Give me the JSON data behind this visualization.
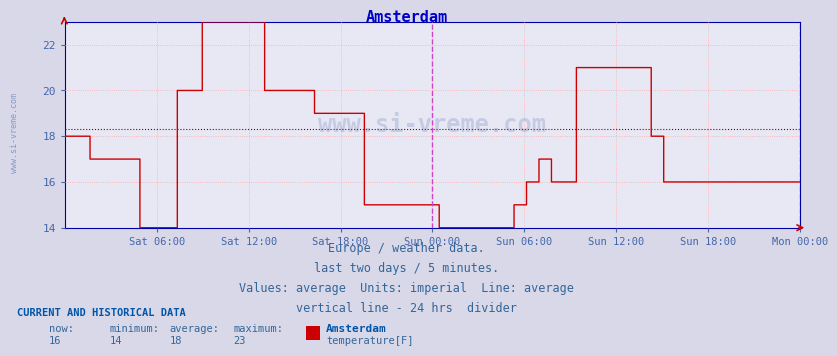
{
  "title": "Amsterdam",
  "title_color": "#0000cc",
  "bg_color": "#d8d8e8",
  "plot_bg_color": "#e8e8f4",
  "line_color": "#cc0000",
  "average_line_color": "#880000",
  "average_value": 18.3,
  "ylim": [
    14,
    23
  ],
  "yticks": [
    14,
    16,
    18,
    20,
    22
  ],
  "grid_color": "#ffaaaa",
  "vline_color": "#cc44cc",
  "axis_color": "#0000aa",
  "tick_color": "#4466aa",
  "footer_lines": [
    "Europe / weather data.",
    "last two days / 5 minutes.",
    "Values: average  Units: imperial  Line: average",
    "vertical line - 24 hrs  divider"
  ],
  "footer_color": "#336699",
  "footer_fontsize": 8.5,
  "current_label": "CURRENT AND HISTORICAL DATA",
  "current_label_color": "#0055aa",
  "stats_color": "#336699",
  "stats_now": 16,
  "stats_min": 14,
  "stats_avg": 18,
  "stats_max": 23,
  "legend_label": "Amsterdam",
  "series_label": "temperature[F]",
  "legend_color": "#0055aa",
  "legend_rect_color": "#cc0000",
  "watermark_color": "#4466aa",
  "watermark_text": "www.si-vreme.com",
  "xtick_labels": [
    "Sat 06:00",
    "Sat 12:00",
    "Sat 18:00",
    "Sun 00:00",
    "Sun 06:00",
    "Sun 12:00",
    "Sun 18:00",
    "Mon 00:00"
  ],
  "vline_pos": 0.5,
  "temperature_data": [
    18,
    18,
    18,
    18,
    18,
    18,
    18,
    18,
    18,
    18,
    18,
    18,
    18,
    18,
    18,
    18,
    18,
    18,
    18,
    18,
    18,
    18,
    18,
    18,
    17,
    17,
    17,
    17,
    17,
    17,
    17,
    17,
    17,
    17,
    17,
    17,
    17,
    17,
    17,
    17,
    17,
    17,
    17,
    17,
    17,
    17,
    17,
    17,
    17,
    17,
    17,
    17,
    17,
    17,
    17,
    17,
    17,
    17,
    17,
    17,
    17,
    17,
    17,
    17,
    17,
    17,
    17,
    17,
    17,
    17,
    17,
    17,
    14,
    14,
    14,
    14,
    14,
    14,
    14,
    14,
    14,
    14,
    14,
    14,
    14,
    14,
    14,
    14,
    14,
    14,
    14,
    14,
    14,
    14,
    14,
    14,
    14,
    14,
    14,
    14,
    14,
    14,
    14,
    14,
    14,
    14,
    14,
    14,
    20,
    20,
    20,
    20,
    20,
    20,
    20,
    20,
    20,
    20,
    20,
    20,
    20,
    20,
    20,
    20,
    20,
    20,
    20,
    20,
    20,
    20,
    20,
    20,
    23,
    23,
    23,
    23,
    23,
    23,
    23,
    23,
    23,
    23,
    23,
    23,
    23,
    23,
    23,
    23,
    23,
    23,
    23,
    23,
    23,
    23,
    23,
    23,
    23,
    23,
    23,
    23,
    23,
    23,
    23,
    23,
    23,
    23,
    23,
    23,
    23,
    23,
    23,
    23,
    23,
    23,
    23,
    23,
    23,
    23,
    23,
    23,
    23,
    23,
    23,
    23,
    23,
    23,
    23,
    23,
    23,
    23,
    23,
    23,
    20,
    20,
    20,
    20,
    20,
    20,
    20,
    20,
    20,
    20,
    20,
    20,
    20,
    20,
    20,
    20,
    20,
    20,
    20,
    20,
    20,
    20,
    20,
    20,
    20,
    20,
    20,
    20,
    20,
    20,
    20,
    20,
    20,
    20,
    20,
    20,
    20,
    20,
    20,
    20,
    20,
    20,
    20,
    20,
    20,
    20,
    20,
    20,
    19,
    19,
    19,
    19,
    19,
    19,
    19,
    19,
    19,
    19,
    19,
    19,
    19,
    19,
    19,
    19,
    19,
    19,
    19,
    19,
    19,
    19,
    19,
    19,
    19,
    19,
    19,
    19,
    19,
    19,
    19,
    19,
    19,
    19,
    19,
    19,
    19,
    19,
    19,
    19,
    19,
    19,
    19,
    19,
    19,
    19,
    19,
    19,
    15,
    15,
    15,
    15,
    15,
    15,
    15,
    15,
    15,
    15,
    15,
    15,
    15,
    15,
    15,
    15,
    15,
    15,
    15,
    15,
    15,
    15,
    15,
    15,
    15,
    15,
    15,
    15,
    15,
    15,
    15,
    15,
    15,
    15,
    15,
    15,
    15,
    15,
    15,
    15,
    15,
    15,
    15,
    15,
    15,
    15,
    15,
    15,
    15,
    15,
    15,
    15,
    15,
    15,
    15,
    15,
    15,
    15,
    15,
    15,
    15,
    15,
    15,
    15,
    15,
    15,
    15,
    15,
    15,
    15,
    15,
    15,
    14,
    14,
    14,
    14,
    14,
    14,
    14,
    14,
    14,
    14,
    14,
    14,
    14,
    14,
    14,
    14,
    14,
    14,
    14,
    14,
    14,
    14,
    14,
    14,
    14,
    14,
    14,
    14,
    14,
    14,
    14,
    14,
    14,
    14,
    14,
    14,
    14,
    14,
    14,
    14,
    14,
    14,
    14,
    14,
    14,
    14,
    14,
    14,
    14,
    14,
    14,
    14,
    14,
    14,
    14,
    14,
    14,
    14,
    14,
    14,
    14,
    14,
    14,
    14,
    14,
    14,
    14,
    14,
    14,
    14,
    14,
    14,
    15,
    15,
    15,
    15,
    15,
    15,
    15,
    15,
    15,
    15,
    15,
    15,
    16,
    16,
    16,
    16,
    16,
    16,
    16,
    16,
    16,
    16,
    16,
    16,
    17,
    17,
    17,
    17,
    17,
    17,
    17,
    17,
    17,
    17,
    17,
    17,
    16,
    16,
    16,
    16,
    16,
    16,
    16,
    16,
    16,
    16,
    16,
    16,
    16,
    16,
    16,
    16,
    16,
    16,
    16,
    16,
    16,
    16,
    16,
    16,
    21,
    21,
    21,
    21,
    21,
    21,
    21,
    21,
    21,
    21,
    21,
    21,
    21,
    21,
    21,
    21,
    21,
    21,
    21,
    21,
    21,
    21,
    21,
    21,
    21,
    21,
    21,
    21,
    21,
    21,
    21,
    21,
    21,
    21,
    21,
    21,
    21,
    21,
    21,
    21,
    21,
    21,
    21,
    21,
    21,
    21,
    21,
    21,
    21,
    21,
    21,
    21,
    21,
    21,
    21,
    21,
    21,
    21,
    21,
    21,
    21,
    21,
    21,
    21,
    21,
    21,
    21,
    21,
    21,
    21,
    21,
    21,
    18,
    18,
    18,
    18,
    18,
    18,
    18,
    18,
    18,
    18,
    18,
    18,
    16,
    16,
    16,
    16,
    16,
    16,
    16,
    16,
    16,
    16,
    16,
    16,
    16,
    16,
    16,
    16,
    16,
    16,
    16,
    16,
    16,
    16,
    16,
    16,
    16,
    16,
    16,
    16,
    16,
    16,
    16,
    16,
    16,
    16,
    16,
    16,
    16,
    16,
    16,
    16,
    16,
    16,
    16,
    16,
    16,
    16,
    16,
    16,
    16,
    16,
    16,
    16,
    16,
    16,
    16,
    16,
    16,
    16,
    16,
    16,
    16,
    16,
    16,
    16,
    16,
    16,
    16,
    16,
    16,
    16,
    16,
    16,
    16,
    16,
    16,
    16,
    16,
    16,
    16,
    16,
    16,
    16,
    16,
    16,
    16,
    16,
    16,
    16,
    16,
    16,
    16,
    16,
    16,
    16,
    16,
    16,
    16,
    16,
    16,
    16,
    16,
    16,
    16,
    16,
    16,
    16,
    16,
    16,
    16,
    16,
    16,
    16,
    16,
    16,
    16,
    16,
    16,
    16,
    16,
    16,
    16,
    16,
    16,
    16,
    16,
    16,
    16,
    16,
    16,
    16,
    16,
    16
  ]
}
